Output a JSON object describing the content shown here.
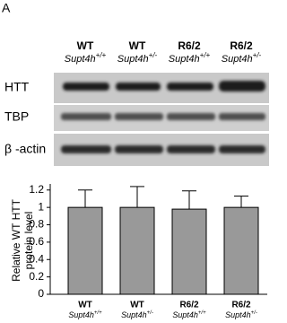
{
  "panel_label": "A",
  "blot": {
    "rows": [
      "HTT",
      "TBP",
      "β -actin"
    ]
  },
  "chart_data": {
    "type": "bar",
    "ylabel": [
      "Relative WT HTT",
      "protein level"
    ],
    "categories": [
      "WT",
      "WT",
      "R6/2",
      "R6/2"
    ],
    "category_sublabels": [
      {
        "gene": "Supt4h",
        "genotype": "+/+"
      },
      {
        "gene": "Supt4h",
        "genotype": "+/-"
      },
      {
        "gene": "Supt4h",
        "genotype": "+/+"
      },
      {
        "gene": "Supt4h",
        "genotype": "+/-"
      }
    ],
    "values": [
      1.0,
      1.0,
      0.98,
      1.0
    ],
    "errors": [
      0.2,
      0.24,
      0.21,
      0.13
    ],
    "color": "#999999",
    "ylim": [
      0,
      1.27
    ],
    "yticks": [
      0,
      0.2,
      0.4,
      0.6,
      0.8,
      1,
      1.2
    ]
  }
}
